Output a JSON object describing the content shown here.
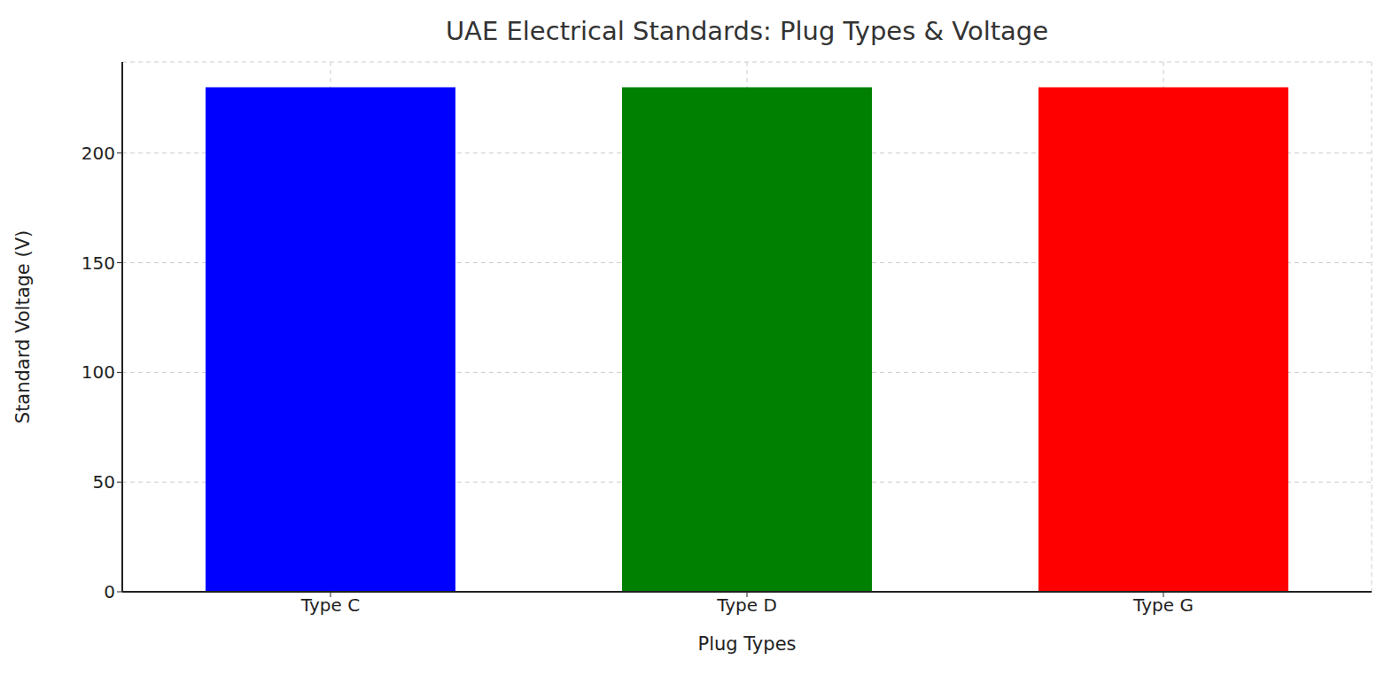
{
  "chart_data": {
    "type": "bar",
    "title": "UAE Electrical Standards: Plug Types & Voltage",
    "x_label": "Plug Types",
    "y_label": "Standard Voltage (V)",
    "categories": [
      "Type C",
      "Type D",
      "Type G"
    ],
    "values": [
      230,
      230,
      230
    ],
    "colors": [
      "#0000ff",
      "#008000",
      "#ff0000"
    ],
    "ylim": [
      0,
      241.5
    ],
    "yticks": [
      0,
      50,
      100,
      150,
      200
    ],
    "grid": true
  }
}
